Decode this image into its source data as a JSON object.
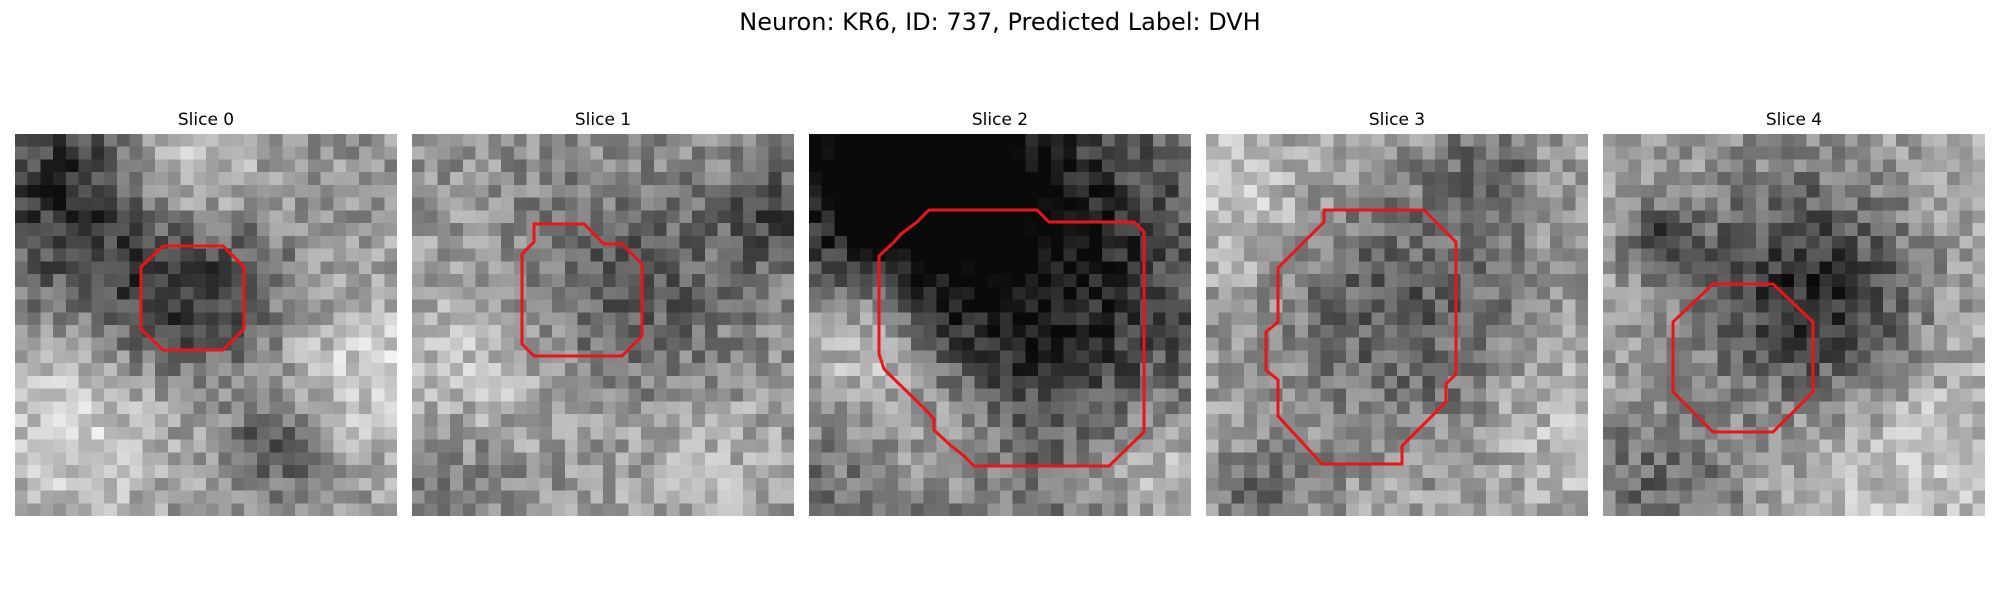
{
  "figure": {
    "title": "Neuron: KR6, ID: 737, Predicted Label: DVH"
  },
  "panels": [
    {
      "title": "Slice 0"
    },
    {
      "title": "Slice 1"
    },
    {
      "title": "Slice 2"
    },
    {
      "title": "Slice 3"
    },
    {
      "title": "Slice 4"
    }
  ],
  "colors": {
    "contour": "#e8151b",
    "background": "#ffffff"
  }
}
